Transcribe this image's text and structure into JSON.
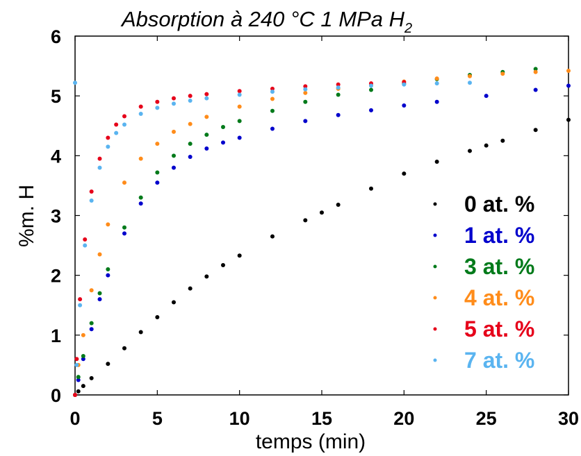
{
  "chart_data": {
    "type": "scatter",
    "title": "Absorption à 240 °C 1 MPa H",
    "title_subscript": "2",
    "xlabel": "temps (min)",
    "ylabel": "%m. H",
    "xlim": [
      0,
      30
    ],
    "ylim": [
      0,
      6
    ],
    "x_ticks": [
      0,
      5,
      10,
      15,
      20,
      25,
      30
    ],
    "y_ticks": [
      0,
      1,
      2,
      3,
      4,
      5,
      6
    ],
    "grid": false,
    "legend_position": "bottom-right",
    "series": [
      {
        "name": "0 at. %",
        "color": "#000000",
        "x": [
          0,
          0.2,
          0.5,
          1,
          2,
          3,
          4,
          5,
          6,
          7,
          8,
          9,
          10,
          12,
          14,
          15,
          16,
          18,
          20,
          22,
          24,
          25,
          26,
          28,
          30
        ],
        "y": [
          0,
          0.06,
          0.15,
          0.28,
          0.52,
          0.78,
          1.05,
          1.3,
          1.55,
          1.78,
          1.98,
          2.17,
          2.33,
          2.65,
          2.92,
          3.05,
          3.18,
          3.45,
          3.7,
          3.9,
          4.08,
          4.17,
          4.25,
          4.43,
          4.6
        ]
      },
      {
        "name": "1 at. %",
        "color": "#0000cc",
        "x": [
          0,
          0.2,
          0.5,
          1,
          1.5,
          2,
          3,
          4,
          5,
          6,
          7,
          8,
          9,
          10,
          12,
          14,
          16,
          18,
          20,
          22,
          25,
          28,
          30
        ],
        "y": [
          0,
          0.25,
          0.6,
          1.1,
          1.6,
          2.0,
          2.7,
          3.2,
          3.55,
          3.8,
          3.98,
          4.12,
          4.22,
          4.3,
          4.45,
          4.58,
          4.68,
          4.76,
          4.84,
          4.9,
          5.0,
          5.1,
          5.17
        ]
      },
      {
        "name": "3 at. %",
        "color": "#007a1a",
        "x": [
          0,
          0.2,
          0.5,
          1,
          1.5,
          2,
          3,
          4,
          5,
          6,
          7,
          8,
          9,
          10,
          12,
          14,
          16,
          18,
          20,
          22,
          24,
          26,
          28
        ],
        "y": [
          0,
          0.3,
          0.65,
          1.2,
          1.7,
          2.1,
          2.8,
          3.3,
          3.72,
          4.0,
          4.2,
          4.35,
          4.48,
          4.58,
          4.75,
          4.9,
          5.02,
          5.1,
          5.2,
          5.28,
          5.35,
          5.4,
          5.45
        ]
      },
      {
        "name": "4 at. %",
        "color": "#ff8c1a",
        "x": [
          0,
          0.2,
          0.5,
          1,
          1.5,
          2,
          3,
          4,
          5,
          6,
          7,
          8,
          10,
          12,
          14,
          16,
          18,
          20,
          22,
          24,
          26,
          28,
          30
        ],
        "y": [
          0,
          0.5,
          1.0,
          1.75,
          2.35,
          2.85,
          3.55,
          3.95,
          4.2,
          4.4,
          4.53,
          4.65,
          4.82,
          4.95,
          5.05,
          5.12,
          5.18,
          5.24,
          5.29,
          5.33,
          5.37,
          5.4,
          5.42
        ]
      },
      {
        "name": "5 at. %",
        "color": "#e6001a",
        "x": [
          0,
          0.1,
          0.3,
          0.6,
          1,
          1.5,
          2,
          2.5,
          3,
          4,
          5,
          6,
          7,
          8,
          10,
          12,
          14,
          16,
          18,
          20
        ],
        "y": [
          0,
          0.6,
          1.6,
          2.6,
          3.4,
          3.95,
          4.3,
          4.52,
          4.66,
          4.82,
          4.9,
          4.96,
          5.0,
          5.03,
          5.08,
          5.12,
          5.16,
          5.19,
          5.21,
          5.23
        ]
      },
      {
        "name": "7 at. %",
        "color": "#5ab4f0",
        "x": [
          0,
          0.1,
          0.3,
          0.6,
          1,
          1.5,
          2,
          2.5,
          3,
          4,
          5,
          6,
          7,
          8,
          10,
          12,
          14,
          16,
          18,
          20,
          22,
          24
        ],
        "y": [
          5.22,
          0.5,
          1.5,
          2.5,
          3.25,
          3.8,
          4.15,
          4.38,
          4.52,
          4.7,
          4.8,
          4.87,
          4.92,
          4.96,
          5.02,
          5.07,
          5.11,
          5.14,
          5.17,
          5.19,
          5.21,
          5.22
        ]
      }
    ]
  }
}
